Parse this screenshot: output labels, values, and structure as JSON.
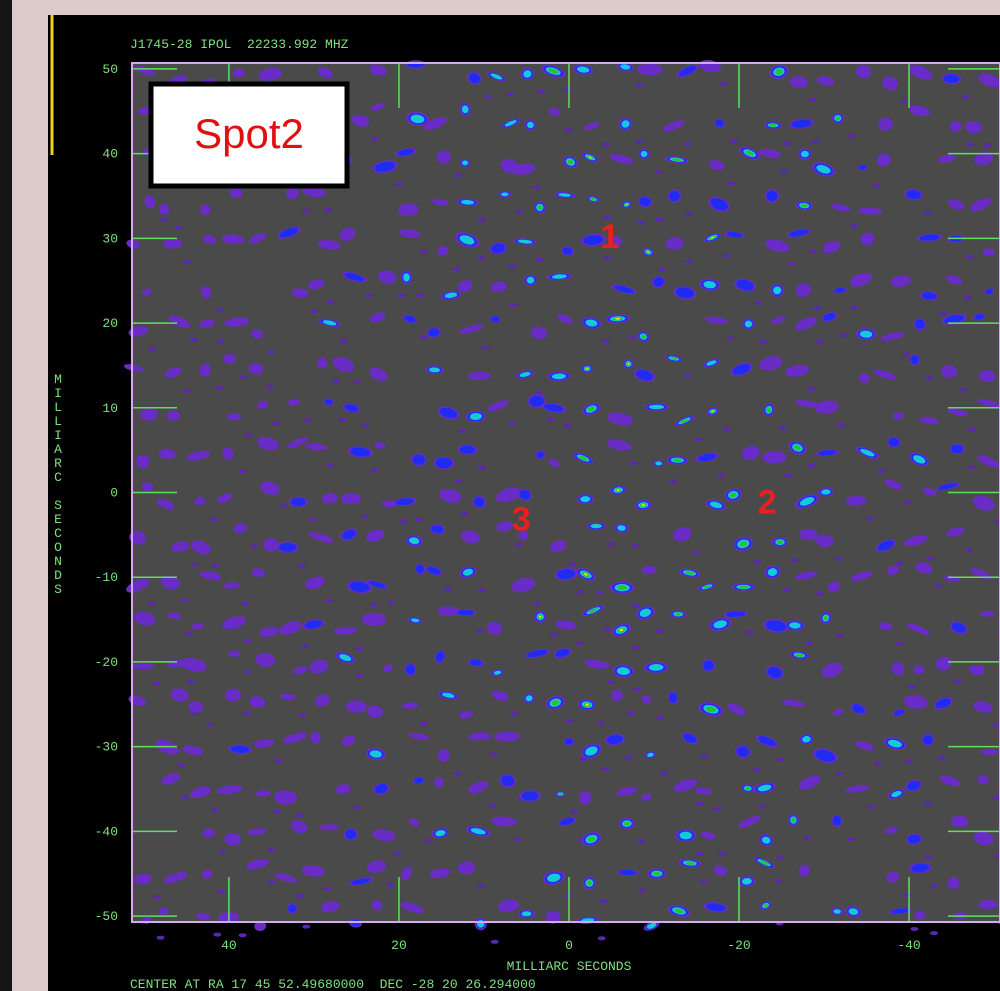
{
  "chart_data": {
    "type": "contour",
    "title": "J1745-28 IPOL  22233.992 MHZ",
    "xlabel": "MILLIARC SECONDS",
    "ylabel": "MILLIARC SECONDS",
    "footer": "CENTER AT RA 17 45 52.49680000  DEC -28 20 26.294000",
    "panel_label": "Spot2",
    "xlim": [
      51.4,
      -50.7
    ],
    "ylim": [
      -50.7,
      50.7
    ],
    "xticks": [
      40,
      20,
      0,
      -20,
      -40
    ],
    "yticks": [
      50,
      40,
      30,
      20,
      10,
      0,
      -10,
      -20,
      -30,
      -40,
      -50
    ],
    "annotations": [
      {
        "text": "1",
        "x": -4.8,
        "y": 29.9
      },
      {
        "text": "2",
        "x": -23.3,
        "y": -1.4
      },
      {
        "text": "3",
        "x": 5.6,
        "y": -3.4
      }
    ]
  }
}
